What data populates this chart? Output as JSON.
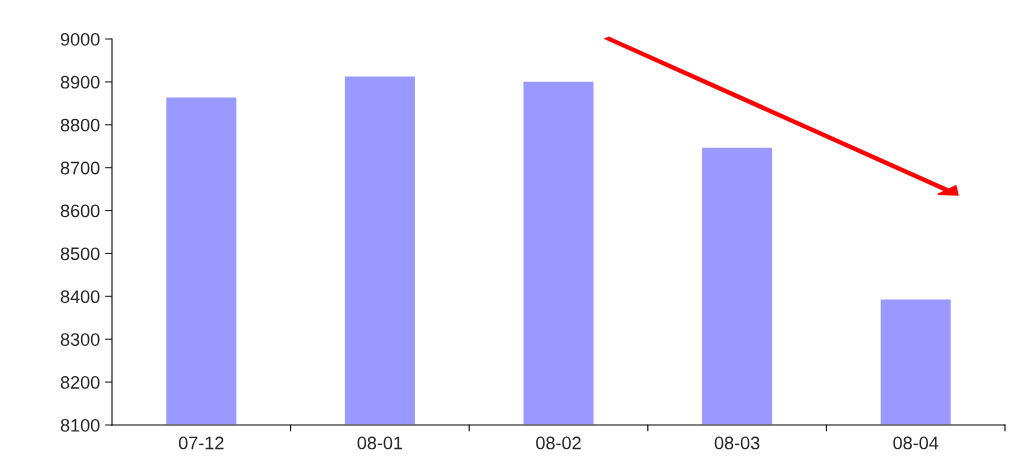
{
  "chart_data": {
    "type": "bar",
    "categories": [
      "07-12",
      "08-01",
      "08-02",
      "08-03",
      "08-04"
    ],
    "values": [
      8865,
      8914,
      8902,
      8748,
      8394
    ],
    "color": "#9999ff",
    "ylim": [
      8100,
      9000
    ],
    "yticks": [
      8100,
      8200,
      8300,
      8400,
      8500,
      8600,
      8700,
      8800,
      8900,
      9000
    ],
    "grid": false,
    "legend": false
  }
}
